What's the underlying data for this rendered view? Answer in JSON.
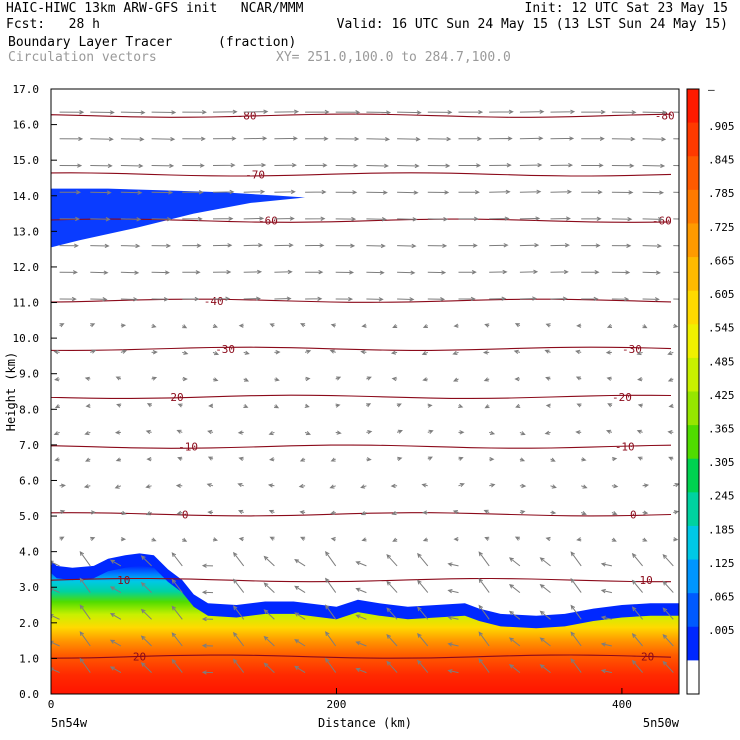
{
  "header": {
    "left_line1": "HAIC-HIWC 13km ARW-GFS init   NCAR/MMM",
    "left_line2": "Fcst:   28 h",
    "right_line1": "Init: 12 UTC Sat 23 May 15",
    "right_line2": "Valid: 16 UTC Sun 24 May 15 (13 LST Sun 24 May 15)",
    "field_name": "Boundary Layer Tracer",
    "field_units": "(fraction)",
    "vector_name": "Circulation vectors",
    "xy_range": "XY= 251.0,100.0 to 284.7,100.0"
  },
  "chart_data": {
    "type": "heatmap",
    "xlabel": "Distance (km)",
    "ylabel": "Height (km)",
    "xlim": [
      0,
      440
    ],
    "ylim": [
      0.0,
      17.0
    ],
    "x_ticks": [
      "0",
      "200",
      "400"
    ],
    "x_corner_labels": [
      "5n54w",
      "5n50w"
    ],
    "y_ticks": [
      "0.0",
      "1.0",
      "2.0",
      "3.0",
      "4.0",
      "5.0",
      "6.0",
      "7.0",
      "8.0",
      "9.0",
      "10.0",
      "11.0",
      "12.0",
      "13.0",
      "14.0",
      "15.0",
      "16.0",
      "17.0"
    ],
    "colorbar_labels": [
      "–",
      ".905",
      ".845",
      ".785",
      ".725",
      ".665",
      ".605",
      ".545",
      ".485",
      ".425",
      ".365",
      ".305",
      ".245",
      ".185",
      ".125",
      ".065",
      ".005"
    ],
    "colorbar_colors": [
      "#ff1a00",
      "#ff3a00",
      "#ff5a00",
      "#ff7a00",
      "#ff9a00",
      "#ffba00",
      "#ffda00",
      "#f0f000",
      "#c8f000",
      "#96e600",
      "#50dc00",
      "#00d250",
      "#00d2a0",
      "#00c8e6",
      "#0096ff",
      "#005aff",
      "#0028ff",
      "#ffffff"
    ],
    "tracer_top_km": [
      [
        0,
        3.75
      ],
      [
        4,
        3.6
      ],
      [
        15,
        3.55
      ],
      [
        30,
        3.6
      ],
      [
        40,
        3.8
      ],
      [
        52,
        3.9
      ],
      [
        62,
        3.95
      ],
      [
        72,
        3.9
      ],
      [
        82,
        3.5
      ],
      [
        92,
        3.2
      ],
      [
        100,
        2.8
      ],
      [
        110,
        2.55
      ],
      [
        130,
        2.5
      ],
      [
        150,
        2.6
      ],
      [
        170,
        2.6
      ],
      [
        190,
        2.5
      ],
      [
        200,
        2.45
      ],
      [
        215,
        2.65
      ],
      [
        230,
        2.55
      ],
      [
        250,
        2.45
      ],
      [
        270,
        2.5
      ],
      [
        290,
        2.55
      ],
      [
        300,
        2.4
      ],
      [
        315,
        2.25
      ],
      [
        340,
        2.2
      ],
      [
        360,
        2.25
      ],
      [
        380,
        2.4
      ],
      [
        400,
        2.5
      ],
      [
        420,
        2.55
      ],
      [
        440,
        2.55
      ]
    ],
    "upper_tracer_km": {
      "top": [
        [
          0,
          14.2
        ],
        [
          40,
          14.2
        ],
        [
          80,
          14.15
        ],
        [
          120,
          14.1
        ],
        [
          160,
          14.0
        ],
        [
          178,
          13.95
        ]
      ],
      "bottom": [
        [
          178,
          13.95
        ],
        [
          140,
          13.8
        ],
        [
          100,
          13.5
        ],
        [
          60,
          13.1
        ],
        [
          20,
          12.75
        ],
        [
          0,
          12.55
        ]
      ]
    },
    "temperature_contours": [
      {
        "label": "-80",
        "height_km": 16.25,
        "label_x": [
          137,
          430
        ]
      },
      {
        "label": "-70",
        "height_km": 14.6,
        "label_x": [
          143
        ]
      },
      {
        "label": "-60",
        "height_km": 13.3,
        "label_x": [
          152,
          428
        ]
      },
      {
        "label": "-40",
        "height_km": 11.05,
        "label_x": [
          114
        ]
      },
      {
        "label": "-30",
        "height_km": 9.7,
        "label_x": [
          122,
          407
        ]
      },
      {
        "label": "-20",
        "height_km": 8.35,
        "label_x": [
          86,
          400
        ]
      },
      {
        "label": "-10",
        "height_km": 6.95,
        "label_x": [
          96,
          402
        ]
      },
      {
        "label": "0",
        "height_km": 5.05,
        "label_x": [
          94,
          408
        ]
      },
      {
        "label": "10",
        "height_km": 3.2,
        "label_x": [
          51,
          417
        ]
      },
      {
        "label": "20",
        "height_km": 1.05,
        "label_x": [
          62,
          418
        ]
      }
    ]
  }
}
